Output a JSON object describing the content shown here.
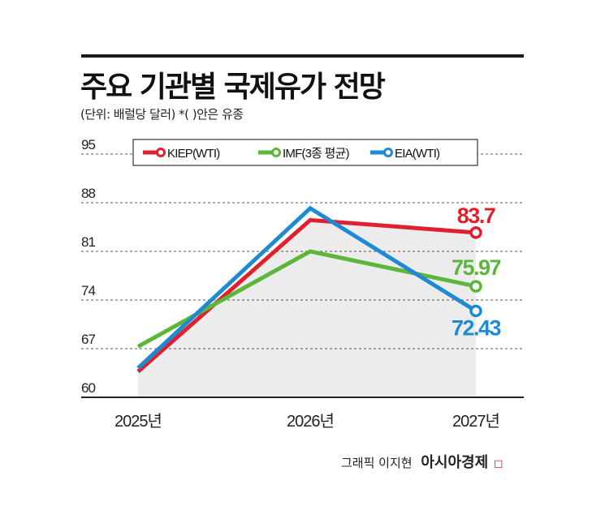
{
  "title": "주요 기관별 국제유가 전망",
  "subtitle": "(단위: 배럴당 달러)  *(  )안은 유종",
  "credit": {
    "text": "그래픽 이지현",
    "brand": "아시아경제",
    "brand_mark": "◻"
  },
  "colors": {
    "KIEP": "#e0202d",
    "IMF": "#5db63a",
    "EIA": "#1f8ad4",
    "area": "#ececec",
    "grid": "#555555"
  },
  "chart_data": {
    "type": "line",
    "categories": [
      "2025년",
      "2026년",
      "2027년"
    ],
    "yticks": [
      60,
      67,
      74,
      81,
      88,
      95
    ],
    "ylim": [
      60,
      95
    ],
    "legend_position": "top",
    "grid": true,
    "series": [
      {
        "name": "KIEP(WTI)",
        "key": "KIEP",
        "values": [
          63.7,
          85.5,
          83.7
        ],
        "end_label": "83.7"
      },
      {
        "name": "IMF(3종 평균)",
        "key": "IMF",
        "values": [
          67.3,
          81.0,
          75.97
        ],
        "end_label": "75.97"
      },
      {
        "name": "EIA(WTI)",
        "key": "EIA",
        "values": [
          64.2,
          87.2,
          72.43
        ],
        "end_label": "72.43"
      }
    ]
  }
}
